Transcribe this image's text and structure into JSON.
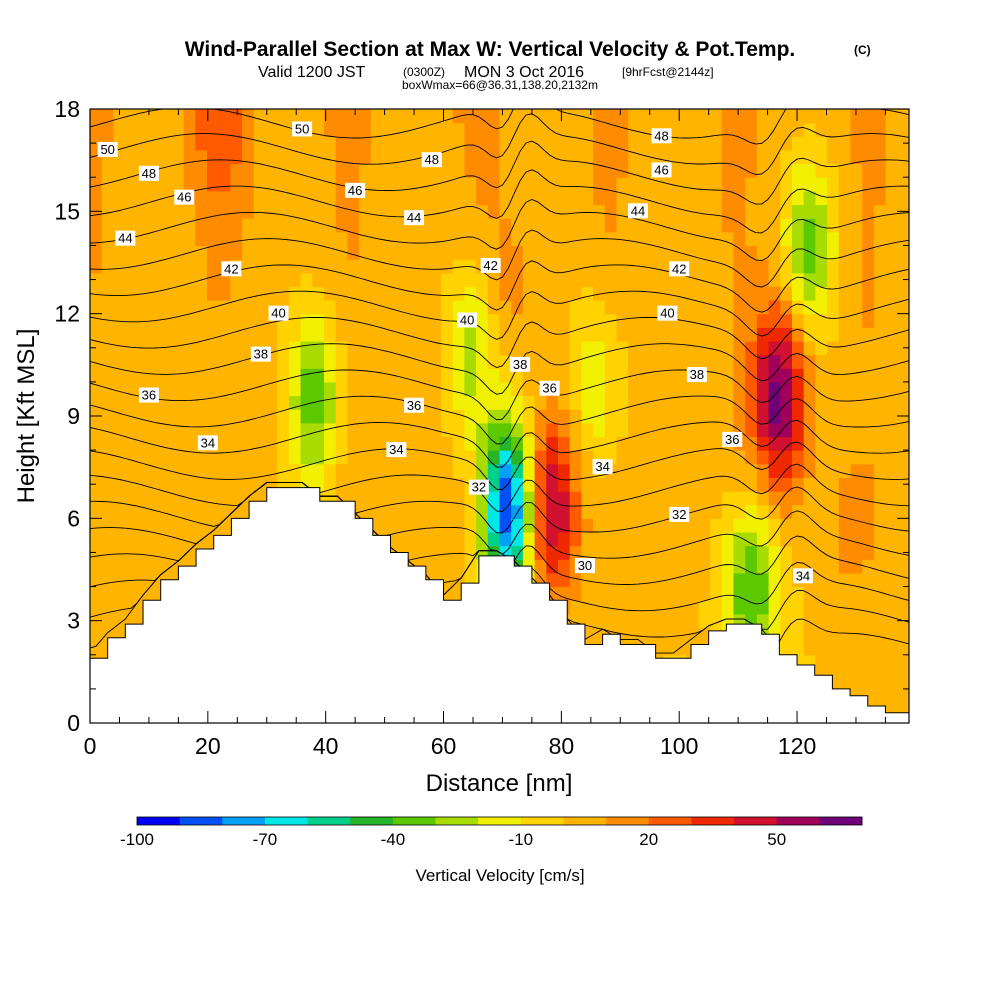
{
  "title": {
    "main": "Wind-Parallel Section at Max W: Vertical Velocity & Pot.Temp.",
    "copyright": "(C)",
    "valid_prefix": "Valid 1200 JST",
    "valid_utc": "(0300Z)",
    "valid_date": "MON 3 Oct 2016",
    "forecast": "[9hrFcst@2144z]",
    "box_info": "boxWmax=66@36.31,138.20,2132m"
  },
  "chart_data": {
    "type": "heatmap",
    "xlabel": "Distance [nm]",
    "ylabel": "Height [Kft MSL]",
    "xlim": [
      0,
      139
    ],
    "ylim": [
      0,
      18
    ],
    "x_ticks": [
      0,
      20,
      40,
      60,
      80,
      100,
      120
    ],
    "y_ticks": [
      0,
      3,
      6,
      9,
      12,
      15,
      18
    ],
    "colorbar": {
      "label": "Vertical Velocity [cm/s]",
      "tick_labels": [
        "-100",
        "-70",
        "-40",
        "-10",
        "20",
        "50"
      ],
      "tick_values": [
        -100,
        -70,
        -40,
        -10,
        20,
        50
      ],
      "range": [
        -100,
        70
      ],
      "colors": [
        "#0000f5",
        "#0050f5",
        "#00a0f5",
        "#00e8e8",
        "#00d08a",
        "#28b428",
        "#5cc800",
        "#a8dc00",
        "#f0f000",
        "#ffd200",
        "#ffb400",
        "#ff8c00",
        "#ff5a00",
        "#f02800",
        "#d21030",
        "#a0005a",
        "#6e0078"
      ]
    },
    "terrain_profile": {
      "x": [
        0,
        3,
        6,
        9,
        12,
        15,
        18,
        21,
        24,
        27,
        30,
        33,
        36,
        39,
        42,
        45,
        48,
        51,
        54,
        57,
        60,
        63,
        66,
        69,
        72,
        75,
        78,
        81,
        84,
        87,
        90,
        93,
        96,
        99,
        102,
        105,
        108,
        111,
        114,
        117,
        120,
        123,
        126,
        129,
        132,
        135,
        139
      ],
      "y": [
        1.9,
        2.5,
        2.9,
        3.6,
        4.2,
        4.6,
        5.1,
        5.5,
        6.0,
        6.5,
        6.9,
        6.9,
        6.9,
        6.5,
        6.5,
        6.0,
        5.5,
        5.0,
        4.6,
        4.2,
        3.6,
        4.1,
        4.9,
        4.9,
        4.6,
        4.1,
        3.6,
        2.9,
        2.3,
        2.6,
        2.3,
        2.3,
        1.9,
        1.9,
        2.3,
        2.7,
        2.9,
        2.9,
        2.6,
        2.0,
        1.7,
        1.4,
        1.0,
        0.8,
        0.5,
        0.3,
        0.3
      ]
    },
    "velocity_features": [
      {
        "kind": "updraft",
        "x": 70,
        "y": 12.0,
        "w": 15
      },
      {
        "kind": "updraft",
        "x": 78,
        "y": 6.3,
        "w": 60
      },
      {
        "kind": "updraft",
        "x": 117,
        "y": 9.5,
        "w": 66
      },
      {
        "kind": "updraft",
        "x": 22,
        "y": 17.5,
        "w": 22
      },
      {
        "kind": "updraft",
        "x": 128,
        "y": 5.5,
        "w": 12
      },
      {
        "kind": "downdraft",
        "x": 71,
        "y": 6.3,
        "w": -90
      },
      {
        "kind": "downdraft",
        "x": 38,
        "y": 9.5,
        "w": -35
      },
      {
        "kind": "downdraft",
        "x": 65,
        "y": 11.0,
        "w": -30
      },
      {
        "kind": "downdraft",
        "x": 112,
        "y": 4.0,
        "w": -40
      },
      {
        "kind": "downdraft",
        "x": 122,
        "y": 14.0,
        "w": -35
      },
      {
        "kind": "downdraft",
        "x": 86,
        "y": 10.0,
        "w": -20
      }
    ],
    "theta_contours": [
      30,
      31,
      32,
      33,
      34,
      35,
      36,
      37,
      38,
      39,
      40,
      41,
      42,
      43,
      44,
      45,
      46,
      47,
      48,
      49,
      50
    ],
    "contour_labels": [
      {
        "text": "50",
        "x": 3,
        "y": 16.8
      },
      {
        "text": "48",
        "x": 10,
        "y": 16.1
      },
      {
        "text": "46",
        "x": 16,
        "y": 15.4
      },
      {
        "text": "44",
        "x": 6,
        "y": 14.2
      },
      {
        "text": "42",
        "x": 24,
        "y": 13.3
      },
      {
        "text": "40",
        "x": 32,
        "y": 12.0
      },
      {
        "text": "38",
        "x": 29,
        "y": 10.8
      },
      {
        "text": "36",
        "x": 10,
        "y": 9.6
      },
      {
        "text": "34",
        "x": 20,
        "y": 8.2
      },
      {
        "text": "50",
        "x": 36,
        "y": 17.4
      },
      {
        "text": "48",
        "x": 58,
        "y": 16.5
      },
      {
        "text": "46",
        "x": 45,
        "y": 15.6
      },
      {
        "text": "44",
        "x": 55,
        "y": 14.8
      },
      {
        "text": "36",
        "x": 55,
        "y": 9.3
      },
      {
        "text": "34",
        "x": 52,
        "y": 8.0
      },
      {
        "text": "32",
        "x": 66,
        "y": 6.9
      },
      {
        "text": "42",
        "x": 68,
        "y": 13.4
      },
      {
        "text": "40",
        "x": 64,
        "y": 11.8
      },
      {
        "text": "38",
        "x": 73,
        "y": 10.5
      },
      {
        "text": "36",
        "x": 78,
        "y": 9.8
      },
      {
        "text": "34",
        "x": 87,
        "y": 7.5
      },
      {
        "text": "30",
        "x": 84,
        "y": 4.6
      },
      {
        "text": "48",
        "x": 97,
        "y": 17.2
      },
      {
        "text": "46",
        "x": 97,
        "y": 16.2
      },
      {
        "text": "44",
        "x": 93,
        "y": 15.0
      },
      {
        "text": "42",
        "x": 100,
        "y": 13.3
      },
      {
        "text": "40",
        "x": 98,
        "y": 12.0
      },
      {
        "text": "38",
        "x": 103,
        "y": 10.2
      },
      {
        "text": "36",
        "x": 109,
        "y": 8.3
      },
      {
        "text": "32",
        "x": 100,
        "y": 6.1
      },
      {
        "text": "34",
        "x": 121,
        "y": 4.3
      }
    ]
  }
}
